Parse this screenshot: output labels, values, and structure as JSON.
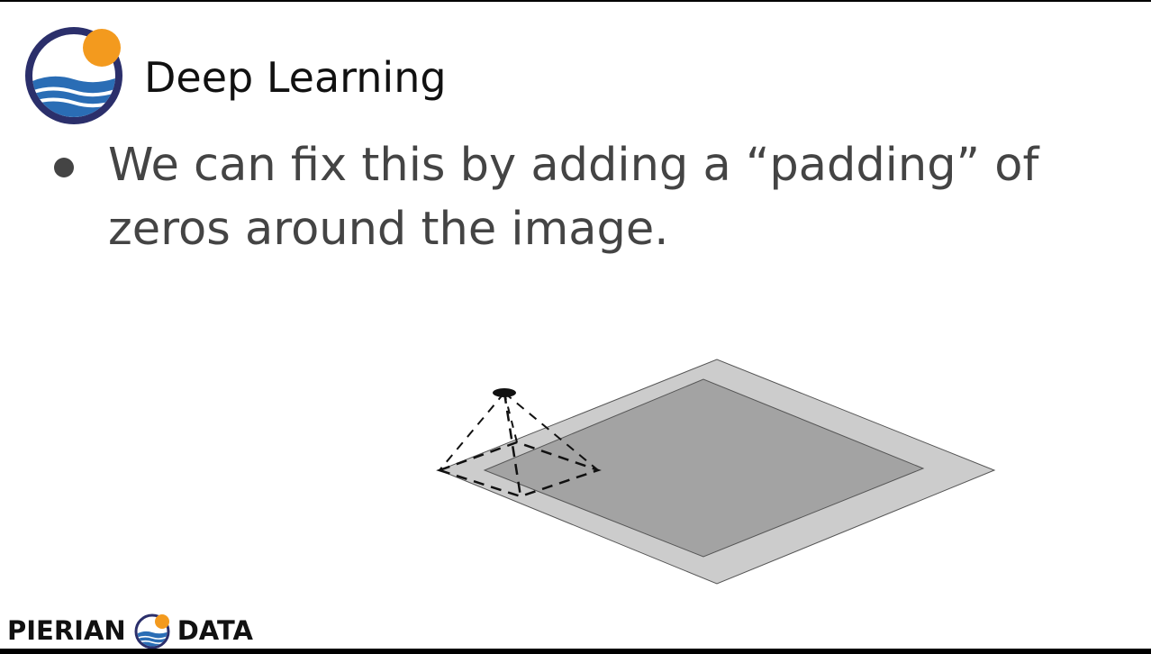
{
  "slide": {
    "title": "Deep Learning",
    "bullets": [
      "We can fix this by adding a “padding” of zeros around the image."
    ]
  },
  "footer": {
    "brand_left": "PIERIAN",
    "brand_right": "DATA"
  },
  "colors": {
    "logo_navy": "#2b2f6b",
    "logo_orange": "#f39a1e",
    "logo_blue": "#2a6db5",
    "padding_gray": "#cccccc",
    "image_gray": "#a3a3a3",
    "text_gray": "#444444"
  },
  "icons": {
    "header_logo": "pierian-data-logo-icon",
    "footer_logo": "pierian-data-logo-icon"
  }
}
